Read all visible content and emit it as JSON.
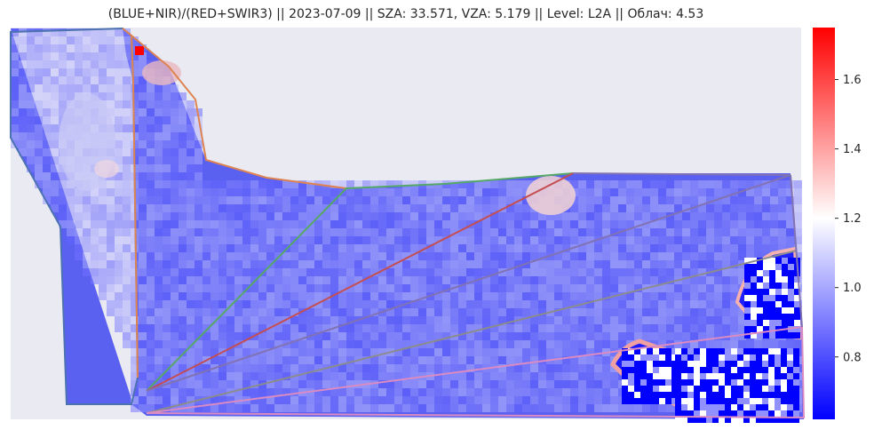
{
  "chart_data": {
    "type": "heatmap",
    "title": "(BLUE+NIR)/(RED+SWIR3) || 2023-07-09 || SZA: 33.571, VZA: 5.179 || Level: L2A || Облач: 4.53",
    "xlabel": "",
    "ylabel": "",
    "grid": false,
    "colormap": "bwr",
    "colorbar": {
      "range": [
        0.62,
        1.75
      ],
      "ticks": [
        0.8,
        1.0,
        1.2,
        1.4,
        1.6
      ],
      "tick_labels": [
        "0.8",
        "1.0",
        "1.2",
        "1.4",
        "1.6"
      ],
      "colors": [
        "#0000ff",
        "#ffffff",
        "#ff0000"
      ],
      "center": 1.2
    },
    "background_color": "#eaeaf2",
    "typical_field_value": 0.95,
    "outline_colors": [
      "#4c72b0",
      "#dd8452",
      "#55a868",
      "#c44e52",
      "#8172b3",
      "#937860",
      "#da8bc3",
      "#8c8c8c"
    ]
  }
}
